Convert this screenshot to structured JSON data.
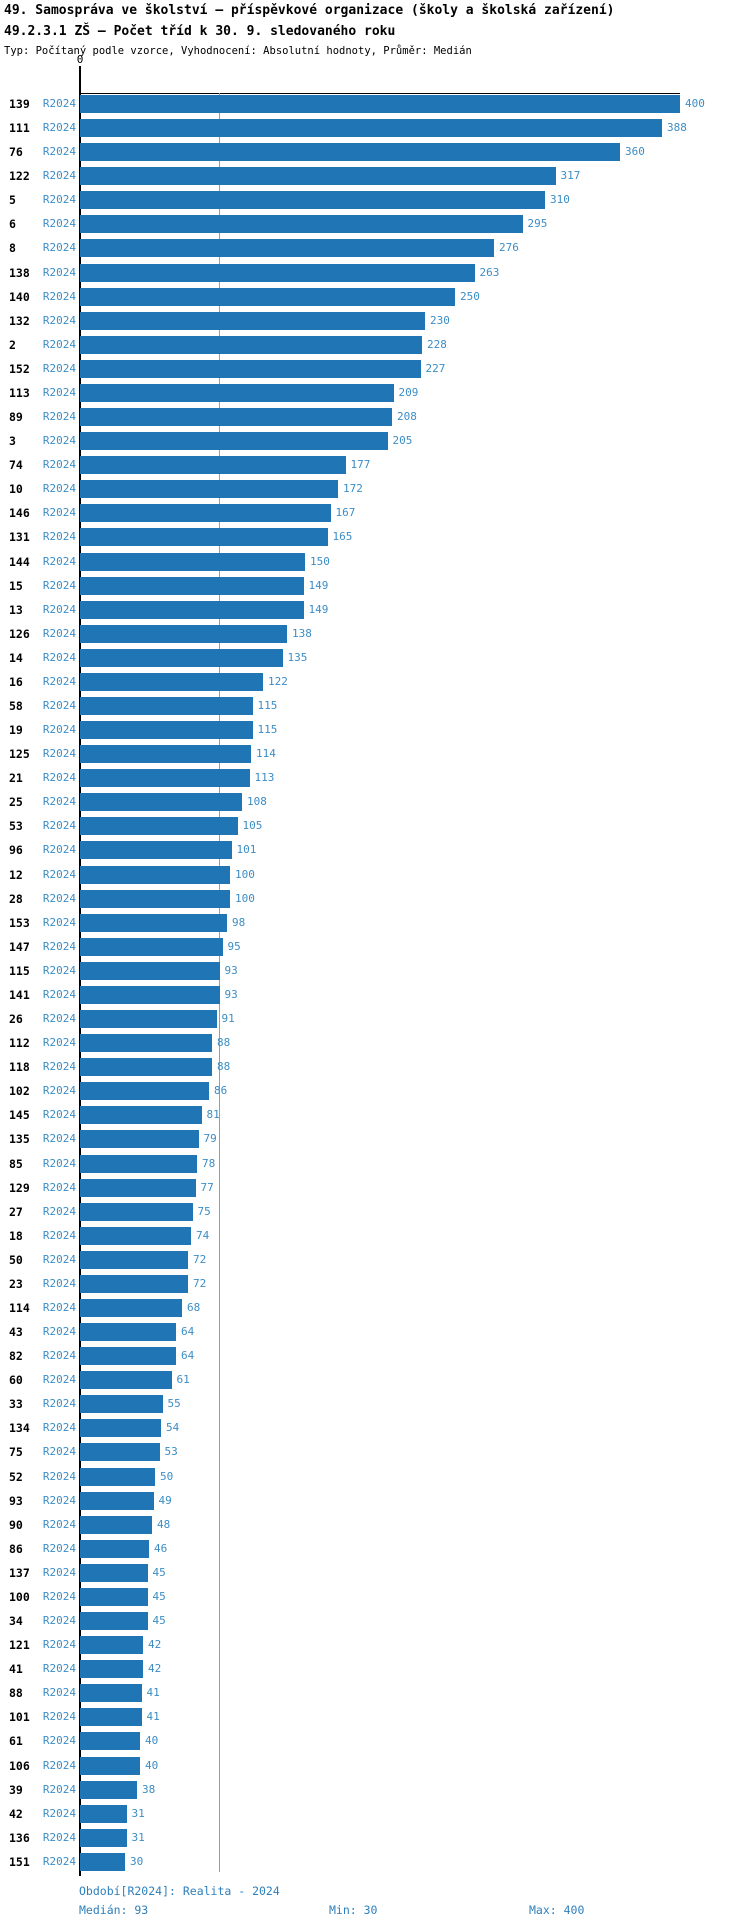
{
  "header": {
    "title_line1": "49. Samospráva ve školství – příspěvkové organizace (školy a školská zařízení)",
    "title_line2": "49.2.3.1 ZŠ – Počet tříd k 30. 9. sledovaného roku",
    "meta": "Typ: Počítaný podle vzorce, Vyhodnocení: Absolutní hodnoty, Průměr: Medián"
  },
  "axis": {
    "zero_tick_label": "0"
  },
  "footer": {
    "period": "Období[R2024]: Realita - 2024",
    "median": "Medián: 93",
    "min": "Min: 30",
    "max": "Max: 400"
  },
  "colors": {
    "bar": "#2076b4",
    "value_text": "#3c8dc5",
    "median_line": "#74a9d4",
    "footer_text": "#2e7fbc",
    "axis": "#000000"
  },
  "chart_data": {
    "type": "bar",
    "orientation": "horizontal",
    "series_label": "R2024",
    "title": "49.2.3.1 ZŠ – Počet tříd k 30. 9. sledovaného roku",
    "xlabel": "",
    "ylabel": "",
    "xlim": [
      0,
      400
    ],
    "grid": false,
    "median_reference_line": 93,
    "stats": {
      "median": 93,
      "min": 30,
      "max": 400
    },
    "categories": [
      "139",
      "111",
      "76",
      "122",
      "5",
      "6",
      "8",
      "138",
      "140",
      "132",
      "2",
      "152",
      "113",
      "89",
      "3",
      "74",
      "10",
      "146",
      "131",
      "144",
      "15",
      "13",
      "126",
      "14",
      "16",
      "58",
      "19",
      "125",
      "21",
      "25",
      "53",
      "96",
      "12",
      "28",
      "153",
      "147",
      "115",
      "141",
      "26",
      "112",
      "118",
      "102",
      "145",
      "135",
      "85",
      "129",
      "27",
      "18",
      "50",
      "23",
      "114",
      "43",
      "82",
      "60",
      "33",
      "134",
      "75",
      "52",
      "93",
      "90",
      "86",
      "137",
      "100",
      "34",
      "121",
      "41",
      "88",
      "101",
      "61",
      "106",
      "39",
      "42",
      "136",
      "151"
    ],
    "values": [
      400,
      388,
      360,
      317,
      310,
      295,
      276,
      263,
      250,
      230,
      228,
      227,
      209,
      208,
      205,
      177,
      172,
      167,
      165,
      150,
      149,
      149,
      138,
      135,
      122,
      115,
      115,
      114,
      113,
      108,
      105,
      101,
      100,
      100,
      98,
      95,
      93,
      93,
      91,
      88,
      88,
      86,
      81,
      79,
      78,
      77,
      75,
      74,
      72,
      72,
      68,
      64,
      64,
      61,
      55,
      54,
      53,
      50,
      49,
      48,
      46,
      45,
      45,
      45,
      42,
      42,
      41,
      41,
      40,
      40,
      38,
      31,
      31,
      30
    ]
  }
}
